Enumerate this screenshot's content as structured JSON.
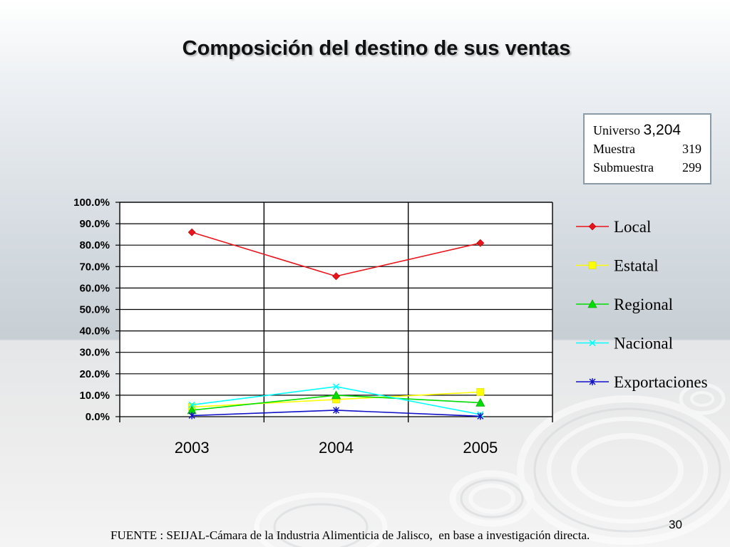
{
  "slide": {
    "title": "Composición del destino de sus ventas",
    "footer": "FUENTE : SEIJAL-Cámara de la Industria Alimenticia de Jalisco,  en base a investigación directa.",
    "page_number": "30"
  },
  "infobox": {
    "universo_label": "Universo",
    "universo_value": "3,204",
    "muestra_label": "Muestra",
    "muestra_value": "319",
    "submuestra_label": "Submuestra",
    "submuestra_value": "299"
  },
  "chart_data": {
    "type": "line",
    "title": "",
    "xlabel": "",
    "ylabel": "",
    "categories": [
      "2003",
      "2004",
      "2005"
    ],
    "ylim": [
      0,
      100
    ],
    "yticks": [
      "0.0%",
      "10.0%",
      "20.0%",
      "30.0%",
      "40.0%",
      "50.0%",
      "60.0%",
      "70.0%",
      "80.0%",
      "90.0%",
      "100.0%"
    ],
    "grid": true,
    "legend_position": "right",
    "series": [
      {
        "name": "Local",
        "values": [
          86.0,
          65.5,
          81.0
        ],
        "color": "#e8141b",
        "marker": "diamond"
      },
      {
        "name": "Estatal",
        "values": [
          4.5,
          8.0,
          11.5
        ],
        "color": "#ffff00",
        "marker": "square"
      },
      {
        "name": "Regional",
        "values": [
          3.0,
          10.0,
          6.5
        ],
        "color": "#00dd00",
        "marker": "triangle"
      },
      {
        "name": "Nacional",
        "values": [
          5.5,
          14.0,
          1.0
        ],
        "color": "#00ffff",
        "marker": "x"
      },
      {
        "name": "Exportaciones",
        "values": [
          0.5,
          3.0,
          0.2
        ],
        "color": "#1010c8",
        "marker": "star"
      }
    ]
  }
}
